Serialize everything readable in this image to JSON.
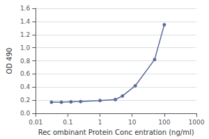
{
  "chart_data": {
    "type": "line",
    "x": [
      0.031,
      0.063,
      0.125,
      0.25,
      1.0,
      3.0,
      5.0,
      12.5,
      50.0,
      100.0
    ],
    "values": [
      0.17,
      0.17,
      0.175,
      0.18,
      0.195,
      0.21,
      0.265,
      0.42,
      0.82,
      1.35
    ],
    "color": "#5a6a9a",
    "marker": "circle",
    "xlabel": "Rec ombinant Protein Conc entration (ng/ml)",
    "ylabel": "OD 490",
    "log": "x",
    "xlim": [
      0.01,
      1000
    ],
    "ylim": [
      0.0,
      1.6
    ],
    "xticks": [
      0.01,
      0.1,
      1,
      10,
      100,
      1000
    ],
    "yticks": [
      {
        "value": 0.0,
        "label": "0.0"
      },
      0.2,
      0.4,
      0.6,
      0.8,
      {
        "value": 1.0,
        "label": "1.0"
      },
      1.2,
      1.4,
      1.6
    ],
    "grid": "y"
  }
}
